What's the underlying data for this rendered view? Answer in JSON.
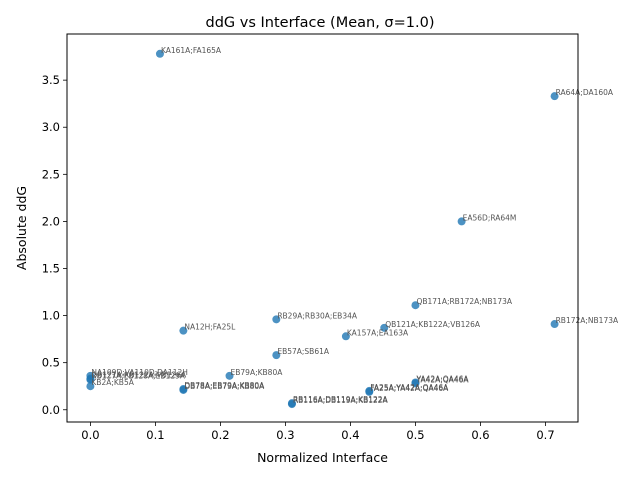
{
  "chart_data": {
    "type": "scatter",
    "title": "ddG vs Interface (Mean, σ=1.0)",
    "xlabel": "Normalized Interface",
    "ylabel": "Absolute ddG",
    "xlim": [
      -0.036,
      0.75
    ],
    "ylim": [
      -0.13,
      3.99
    ],
    "xticks": [
      0.0,
      0.1,
      0.2,
      0.3,
      0.4,
      0.5,
      0.6,
      0.7
    ],
    "xtick_labels": [
      "0.0",
      "0.1",
      "0.2",
      "0.3",
      "0.4",
      "0.5",
      "0.6",
      "0.7"
    ],
    "yticks": [
      0.0,
      0.5,
      1.0,
      1.5,
      2.0,
      2.5,
      3.0,
      3.5
    ],
    "ytick_labels": [
      "0.0",
      "0.5",
      "1.0",
      "1.5",
      "2.0",
      "2.5",
      "3.0",
      "3.5"
    ],
    "grid": false,
    "point_color": "#1f77b4",
    "annotation_color": "#555555",
    "points": [
      {
        "x": 0.107,
        "y": 3.78,
        "label": "KA161A;FA165A"
      },
      {
        "x": 0.714,
        "y": 3.33,
        "label": "RA64A;DA160A"
      },
      {
        "x": 0.571,
        "y": 2.0,
        "label": "EA56D;RA64M"
      },
      {
        "x": 0.5,
        "y": 1.11,
        "label": "QB171A;RB172A;NB173A"
      },
      {
        "x": 0.714,
        "y": 0.91,
        "label": "RB172A;NB173A"
      },
      {
        "x": 0.286,
        "y": 0.96,
        "label": "RB29A;RB30A;EB34A"
      },
      {
        "x": 0.452,
        "y": 0.87,
        "label": "QB121A;KB122A;VB126A"
      },
      {
        "x": 0.143,
        "y": 0.84,
        "label": "NA12H;FA25L"
      },
      {
        "x": 0.393,
        "y": 0.78,
        "label": "KA157A;EA163A"
      },
      {
        "x": 0.286,
        "y": 0.58,
        "label": "EB57A;SB61A"
      },
      {
        "x": 0.0,
        "y": 0.36,
        "label": "NA109D;VA110D;DA112H"
      },
      {
        "x": 0.0,
        "y": 0.33,
        "label": "QB121A;KB122A;VB126A"
      },
      {
        "x": 0.0,
        "y": 0.32,
        "label": "RB127A;EB128A;EB129A"
      },
      {
        "x": 0.214,
        "y": 0.36,
        "label": "EB79A;KB80A"
      },
      {
        "x": 0.0,
        "y": 0.25,
        "label": "KB2A;KB5A"
      },
      {
        "x": 0.143,
        "y": 0.22,
        "label": "DB78A;EB79A;KB80A"
      },
      {
        "x": 0.143,
        "y": 0.21,
        "label": "DB78A;EB79A;KB80A"
      },
      {
        "x": 0.5,
        "y": 0.29,
        "label": "YA42A;QA46A"
      },
      {
        "x": 0.5,
        "y": 0.28,
        "label": "YA42A;QA46A"
      },
      {
        "x": 0.429,
        "y": 0.2,
        "label": "FA25A;YA42A;QA46A"
      },
      {
        "x": 0.429,
        "y": 0.19,
        "label": "FA25A;YA42A;QA46A"
      },
      {
        "x": 0.31,
        "y": 0.07,
        "label": "RB116A;DB119A;KB122A"
      },
      {
        "x": 0.31,
        "y": 0.06,
        "label": "RB116A;DB119A;KB122A"
      }
    ]
  }
}
